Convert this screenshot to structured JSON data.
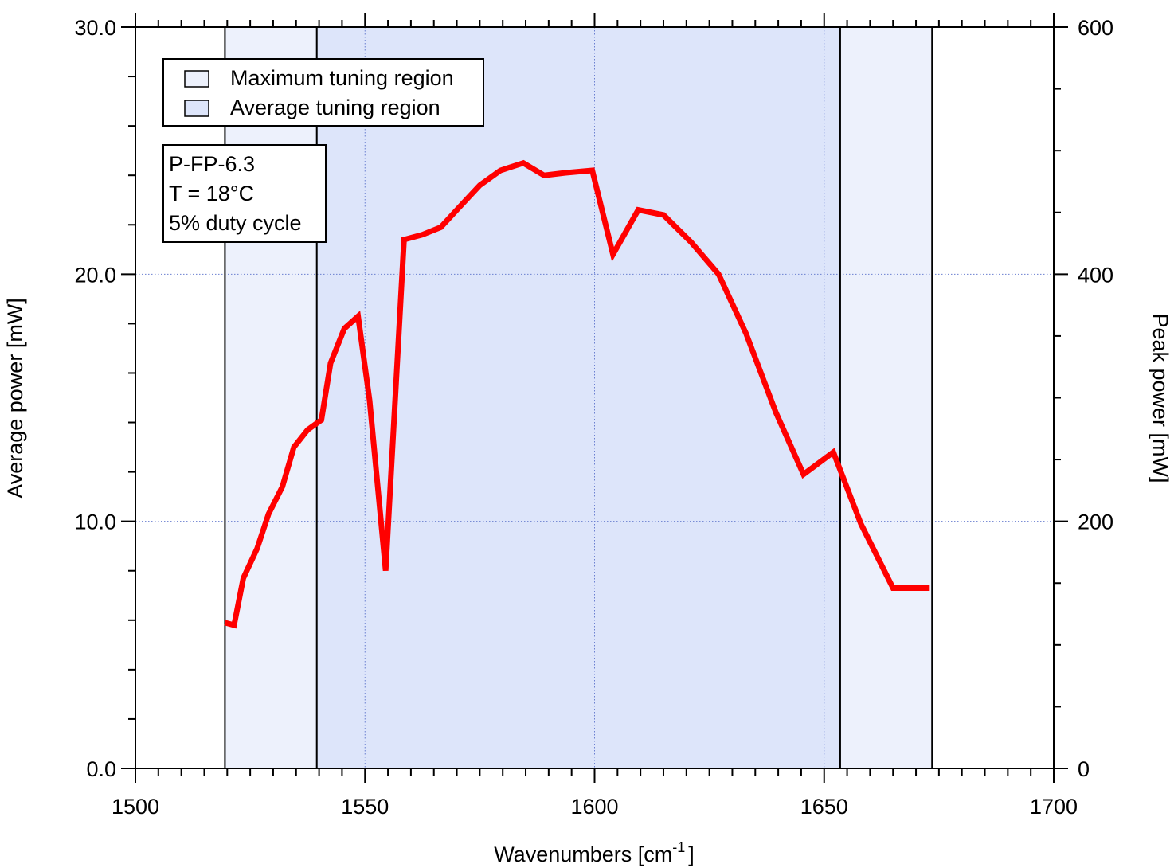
{
  "chart_data": {
    "type": "line",
    "xlabel": "Wavenumbers [cm",
    "xlabel_sup": "-1",
    "xlabel_end": "]",
    "ylabel": "Average power [mW]",
    "y2label": "Peak power [mW]",
    "xlim": [
      1500,
      1700
    ],
    "ylim": [
      0,
      30
    ],
    "y2lim": [
      0,
      600
    ],
    "xticks": [
      1500,
      1550,
      1600,
      1650,
      1700
    ],
    "xtick_labels": [
      "1500",
      "1550",
      "1600",
      "1650",
      "1700"
    ],
    "yticks": [
      0,
      10,
      20,
      30
    ],
    "ytick_labels": [
      "0.0",
      "10.0",
      "20.0",
      "30.0"
    ],
    "y2ticks": [
      0,
      200,
      400,
      600
    ],
    "y2tick_labels": [
      "0",
      "200",
      "400",
      "600"
    ],
    "grid": true,
    "legend_position": "top-left",
    "regions": [
      {
        "name": "Maximum tuning region",
        "x_range": [
          1519.5,
          1673.5
        ],
        "color": "#edf1fc"
      },
      {
        "name": "Average tuning region",
        "x_range": [
          1539.5,
          1653.5
        ],
        "color": "#dde5fa"
      }
    ],
    "series": [
      {
        "color": "#ff0000",
        "x": [
          1519.5,
          1521.5,
          1523.5,
          1526.5,
          1529,
          1532,
          1534.5,
          1537.5,
          1540.5,
          1542.5,
          1545.5,
          1548.5,
          1551,
          1554.5,
          1558.5,
          1562.5,
          1566.5,
          1570.5,
          1575,
          1579.5,
          1584.5,
          1589,
          1593.5,
          1599.5,
          1604,
          1609.5,
          1615,
          1621,
          1627,
          1633,
          1639.5,
          1645.5,
          1652,
          1658,
          1665,
          1673
        ],
        "y": [
          5.9,
          5.8,
          7.7,
          8.9,
          10.3,
          11.4,
          13.0,
          13.7,
          14.1,
          16.4,
          17.8,
          18.3,
          14.9,
          8.0,
          21.4,
          21.6,
          21.9,
          22.7,
          23.6,
          24.2,
          24.5,
          24.0,
          24.1,
          24.2,
          20.8,
          22.6,
          22.4,
          21.3,
          20.0,
          17.6,
          14.4,
          11.9,
          12.8,
          9.9,
          7.3,
          7.3
        ]
      }
    ],
    "annotation": {
      "lines": [
        "P-FP-6.3",
        "T = 18°C",
        "5% duty cycle"
      ]
    }
  }
}
